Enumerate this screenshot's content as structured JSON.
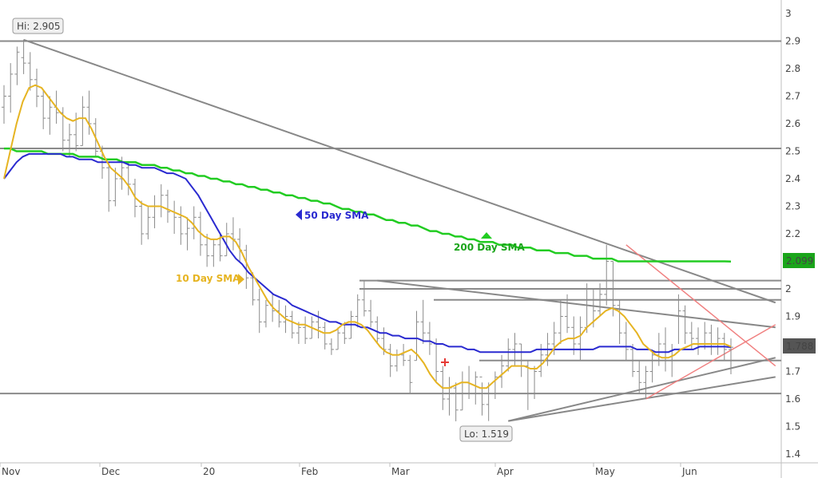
{
  "chart_data": {
    "type": "ohlc",
    "y_axis": {
      "ylim": [
        1.4,
        3.0
      ],
      "ticks": [
        "1.4",
        "1.5",
        "1.6",
        "1.7",
        "1.8",
        "1.9",
        "2",
        "2.1",
        "2.2",
        "2.3",
        "2.4",
        "2.5",
        "2.6",
        "2.7",
        "2.8",
        "2.9",
        "3"
      ]
    },
    "x_axis": {
      "ticks": [
        "Nov",
        "Dec",
        "20",
        "Feb",
        "Mar",
        "Apr",
        "May",
        "Jun"
      ]
    },
    "price_bars": [
      {
        "h": 2.74,
        "l": 2.6,
        "o": 2.66,
        "c": 2.7
      },
      {
        "h": 2.82,
        "l": 2.64,
        "o": 2.7,
        "c": 2.78
      },
      {
        "h": 2.88,
        "l": 2.74,
        "o": 2.78,
        "c": 2.86
      },
      {
        "h": 2.905,
        "l": 2.78,
        "o": 2.84,
        "c": 2.82
      },
      {
        "h": 2.86,
        "l": 2.72,
        "o": 2.82,
        "c": 2.76
      },
      {
        "h": 2.8,
        "l": 2.66,
        "o": 2.76,
        "c": 2.7
      },
      {
        "h": 2.72,
        "l": 2.58,
        "o": 2.7,
        "c": 2.62
      },
      {
        "h": 2.7,
        "l": 2.56,
        "o": 2.62,
        "c": 2.66
      },
      {
        "h": 2.72,
        "l": 2.6,
        "o": 2.66,
        "c": 2.64
      },
      {
        "h": 2.66,
        "l": 2.5,
        "o": 2.64,
        "c": 2.54
      },
      {
        "h": 2.6,
        "l": 2.48,
        "o": 2.54,
        "c": 2.56
      },
      {
        "h": 2.64,
        "l": 2.5,
        "o": 2.56,
        "c": 2.52
      },
      {
        "h": 2.7,
        "l": 2.52,
        "o": 2.52,
        "c": 2.66
      },
      {
        "h": 2.72,
        "l": 2.56,
        "o": 2.66,
        "c": 2.6
      },
      {
        "h": 2.62,
        "l": 2.48,
        "o": 2.6,
        "c": 2.5
      },
      {
        "h": 2.52,
        "l": 2.4,
        "o": 2.5,
        "c": 2.44
      },
      {
        "h": 2.46,
        "l": 2.28,
        "o": 2.44,
        "c": 2.32
      },
      {
        "h": 2.44,
        "l": 2.3,
        "o": 2.32,
        "c": 2.4
      },
      {
        "h": 2.48,
        "l": 2.36,
        "o": 2.4,
        "c": 2.44
      },
      {
        "h": 2.46,
        "l": 2.34,
        "o": 2.44,
        "c": 2.38
      },
      {
        "h": 2.4,
        "l": 2.26,
        "o": 2.38,
        "c": 2.3
      },
      {
        "h": 2.32,
        "l": 2.16,
        "o": 2.3,
        "c": 2.2
      },
      {
        "h": 2.3,
        "l": 2.18,
        "o": 2.2,
        "c": 2.26
      },
      {
        "h": 2.34,
        "l": 2.22,
        "o": 2.26,
        "c": 2.3
      },
      {
        "h": 2.38,
        "l": 2.26,
        "o": 2.3,
        "c": 2.34
      },
      {
        "h": 2.36,
        "l": 2.24,
        "o": 2.34,
        "c": 2.28
      },
      {
        "h": 2.32,
        "l": 2.2,
        "o": 2.28,
        "c": 2.26
      },
      {
        "h": 2.3,
        "l": 2.16,
        "o": 2.26,
        "c": 2.2
      },
      {
        "h": 2.26,
        "l": 2.14,
        "o": 2.2,
        "c": 2.22
      },
      {
        "h": 2.3,
        "l": 2.18,
        "o": 2.22,
        "c": 2.26
      },
      {
        "h": 2.28,
        "l": 2.12,
        "o": 2.26,
        "c": 2.16
      },
      {
        "h": 2.2,
        "l": 2.08,
        "o": 2.16,
        "c": 2.12
      },
      {
        "h": 2.18,
        "l": 2.08,
        "o": 2.12,
        "c": 2.16
      },
      {
        "h": 2.2,
        "l": 2.1,
        "o": 2.16,
        "c": 2.12
      },
      {
        "h": 2.24,
        "l": 2.12,
        "o": 2.12,
        "c": 2.2
      },
      {
        "h": 2.26,
        "l": 2.14,
        "o": 2.2,
        "c": 2.18
      },
      {
        "h": 2.22,
        "l": 2.1,
        "o": 2.18,
        "c": 2.14
      },
      {
        "h": 2.16,
        "l": 2.0,
        "o": 2.14,
        "c": 2.04
      },
      {
        "h": 2.06,
        "l": 1.94,
        "o": 2.04,
        "c": 1.96
      },
      {
        "h": 2.0,
        "l": 1.84,
        "o": 1.96,
        "c": 1.88
      },
      {
        "h": 1.96,
        "l": 1.86,
        "o": 1.88,
        "c": 1.94
      },
      {
        "h": 1.98,
        "l": 1.88,
        "o": 1.94,
        "c": 1.92
      },
      {
        "h": 1.96,
        "l": 1.86,
        "o": 1.92,
        "c": 1.88
      },
      {
        "h": 1.94,
        "l": 1.84,
        "o": 1.88,
        "c": 1.9
      },
      {
        "h": 1.92,
        "l": 1.82,
        "o": 1.9,
        "c": 1.84
      },
      {
        "h": 1.88,
        "l": 1.8,
        "o": 1.84,
        "c": 1.86
      },
      {
        "h": 1.9,
        "l": 1.8,
        "o": 1.86,
        "c": 1.82
      },
      {
        "h": 1.9,
        "l": 1.82,
        "o": 1.82,
        "c": 1.88
      },
      {
        "h": 1.92,
        "l": 1.82,
        "o": 1.88,
        "c": 1.86
      },
      {
        "h": 1.88,
        "l": 1.78,
        "o": 1.86,
        "c": 1.8
      },
      {
        "h": 1.82,
        "l": 1.76,
        "o": 1.8,
        "c": 1.78
      },
      {
        "h": 1.86,
        "l": 1.78,
        "o": 1.78,
        "c": 1.84
      },
      {
        "h": 1.88,
        "l": 1.8,
        "o": 1.84,
        "c": 1.82
      },
      {
        "h": 1.92,
        "l": 1.82,
        "o": 1.82,
        "c": 1.9
      },
      {
        "h": 1.98,
        "l": 1.86,
        "o": 1.9,
        "c": 1.96
      },
      {
        "h": 2.03,
        "l": 1.9,
        "o": 1.96,
        "c": 1.92
      },
      {
        "h": 1.96,
        "l": 1.86,
        "o": 1.92,
        "c": 1.88
      },
      {
        "h": 1.9,
        "l": 1.8,
        "o": 1.88,
        "c": 1.82
      },
      {
        "h": 1.86,
        "l": 1.76,
        "o": 1.82,
        "c": 1.78
      },
      {
        "h": 1.8,
        "l": 1.68,
        "o": 1.78,
        "c": 1.72
      },
      {
        "h": 1.78,
        "l": 1.7,
        "o": 1.72,
        "c": 1.76
      },
      {
        "h": 1.8,
        "l": 1.72,
        "o": 1.76,
        "c": 1.74
      },
      {
        "h": 1.76,
        "l": 1.62,
        "o": 1.74,
        "c": 1.66
      },
      {
        "h": 1.92,
        "l": 1.74,
        "o": 1.74,
        "c": 1.88
      },
      {
        "h": 1.96,
        "l": 1.8,
        "o": 1.88,
        "c": 1.84
      },
      {
        "h": 1.88,
        "l": 1.76,
        "o": 1.84,
        "c": 1.8
      },
      {
        "h": 1.82,
        "l": 1.66,
        "o": 1.8,
        "c": 1.7
      },
      {
        "h": 1.72,
        "l": 1.56,
        "o": 1.7,
        "c": 1.6
      },
      {
        "h": 1.68,
        "l": 1.54,
        "o": 1.6,
        "c": 1.64
      },
      {
        "h": 1.66,
        "l": 1.519,
        "o": 1.64,
        "c": 1.56
      },
      {
        "h": 1.7,
        "l": 1.56,
        "o": 1.56,
        "c": 1.66
      },
      {
        "h": 1.72,
        "l": 1.6,
        "o": 1.66,
        "c": 1.62
      },
      {
        "h": 1.7,
        "l": 1.58,
        "o": 1.62,
        "c": 1.68
      },
      {
        "h": 1.66,
        "l": 1.54,
        "o": 1.68,
        "c": 1.58
      },
      {
        "h": 1.66,
        "l": 1.52,
        "o": 1.58,
        "c": 1.62
      },
      {
        "h": 1.7,
        "l": 1.6,
        "o": 1.62,
        "c": 1.68
      },
      {
        "h": 1.76,
        "l": 1.64,
        "o": 1.68,
        "c": 1.72
      },
      {
        "h": 1.82,
        "l": 1.7,
        "o": 1.72,
        "c": 1.78
      },
      {
        "h": 1.84,
        "l": 1.72,
        "o": 1.78,
        "c": 1.8
      },
      {
        "h": 1.8,
        "l": 1.68,
        "o": 1.8,
        "c": 1.72
      },
      {
        "h": 1.74,
        "l": 1.56,
        "o": 1.72,
        "c": 1.62
      },
      {
        "h": 1.72,
        "l": 1.6,
        "o": 1.62,
        "c": 1.7
      },
      {
        "h": 1.8,
        "l": 1.68,
        "o": 1.7,
        "c": 1.76
      },
      {
        "h": 1.84,
        "l": 1.72,
        "o": 1.76,
        "c": 1.8
      },
      {
        "h": 1.88,
        "l": 1.76,
        "o": 1.8,
        "c": 1.84
      },
      {
        "h": 1.96,
        "l": 1.8,
        "o": 1.84,
        "c": 1.9
      },
      {
        "h": 1.98,
        "l": 1.84,
        "o": 1.9,
        "c": 1.86
      },
      {
        "h": 1.9,
        "l": 1.76,
        "o": 1.86,
        "c": 1.8
      },
      {
        "h": 1.9,
        "l": 1.74,
        "o": 1.8,
        "c": 1.86
      },
      {
        "h": 2.02,
        "l": 1.84,
        "o": 1.86,
        "c": 1.96
      },
      {
        "h": 2.0,
        "l": 1.86,
        "o": 1.96,
        "c": 1.92
      },
      {
        "h": 2.02,
        "l": 1.9,
        "o": 1.92,
        "c": 1.98
      },
      {
        "h": 2.16,
        "l": 1.94,
        "o": 1.98,
        "c": 2.1
      },
      {
        "h": 2.1,
        "l": 1.9,
        "o": 2.1,
        "c": 1.94
      },
      {
        "h": 1.96,
        "l": 1.8,
        "o": 1.94,
        "c": 1.84
      },
      {
        "h": 1.88,
        "l": 1.74,
        "o": 1.84,
        "c": 1.78
      },
      {
        "h": 1.8,
        "l": 1.68,
        "o": 1.78,
        "c": 1.7
      },
      {
        "h": 1.74,
        "l": 1.62,
        "o": 1.7,
        "c": 1.66
      },
      {
        "h": 1.72,
        "l": 1.6,
        "o": 1.66,
        "c": 1.7
      },
      {
        "h": 1.78,
        "l": 1.66,
        "o": 1.7,
        "c": 1.76
      },
      {
        "h": 1.84,
        "l": 1.72,
        "o": 1.76,
        "c": 1.8
      },
      {
        "h": 1.86,
        "l": 1.7,
        "o": 1.8,
        "c": 1.74
      },
      {
        "h": 1.8,
        "l": 1.68,
        "o": 1.74,
        "c": 1.78
      },
      {
        "h": 1.98,
        "l": 1.8,
        "o": 1.78,
        "c": 1.92
      },
      {
        "h": 1.94,
        "l": 1.8,
        "o": 1.92,
        "c": 1.84
      },
      {
        "h": 1.88,
        "l": 1.78,
        "o": 1.84,
        "c": 1.82
      },
      {
        "h": 1.86,
        "l": 1.76,
        "o": 1.82,
        "c": 1.8
      },
      {
        "h": 1.88,
        "l": 1.78,
        "o": 1.8,
        "c": 1.84
      },
      {
        "h": 1.87,
        "l": 1.76,
        "o": 1.84,
        "c": 1.8
      },
      {
        "h": 1.86,
        "l": 1.76,
        "o": 1.8,
        "c": 1.82
      },
      {
        "h": 1.84,
        "l": 1.74,
        "o": 1.82,
        "c": 1.78
      },
      {
        "h": 1.82,
        "l": 1.69,
        "o": 1.78,
        "c": 1.788
      }
    ],
    "sma10": [
      2.4,
      2.5,
      2.6,
      2.68,
      2.73,
      2.74,
      2.73,
      2.7,
      2.67,
      2.64,
      2.62,
      2.61,
      2.62,
      2.62,
      2.58,
      2.53,
      2.48,
      2.44,
      2.42,
      2.4,
      2.37,
      2.33,
      2.31,
      2.3,
      2.3,
      2.3,
      2.29,
      2.28,
      2.27,
      2.26,
      2.24,
      2.21,
      2.19,
      2.18,
      2.18,
      2.19,
      2.19,
      2.17,
      2.13,
      2.08,
      2.04,
      2.0,
      1.96,
      1.93,
      1.91,
      1.89,
      1.88,
      1.87,
      1.87,
      1.86,
      1.85,
      1.84,
      1.84,
      1.85,
      1.87,
      1.88,
      1.88,
      1.87,
      1.85,
      1.82,
      1.79,
      1.77,
      1.76,
      1.76,
      1.77,
      1.78,
      1.76,
      1.73,
      1.69,
      1.66,
      1.64,
      1.64,
      1.65,
      1.66,
      1.66,
      1.65,
      1.64,
      1.64,
      1.66,
      1.68,
      1.7,
      1.72,
      1.72,
      1.72,
      1.71,
      1.71,
      1.73,
      1.76,
      1.79,
      1.81,
      1.82,
      1.82,
      1.83,
      1.86,
      1.88,
      1.9,
      1.92,
      1.93,
      1.92,
      1.9,
      1.87,
      1.84,
      1.8,
      1.78,
      1.76,
      1.75,
      1.75,
      1.76,
      1.78,
      1.79,
      1.8,
      1.8,
      1.8,
      1.8,
      1.8,
      1.8,
      1.79
    ],
    "sma50": [
      2.4,
      2.43,
      2.46,
      2.48,
      2.49,
      2.49,
      2.49,
      2.49,
      2.49,
      2.49,
      2.48,
      2.48,
      2.47,
      2.47,
      2.47,
      2.46,
      2.46,
      2.46,
      2.46,
      2.46,
      2.45,
      2.45,
      2.44,
      2.44,
      2.44,
      2.43,
      2.42,
      2.42,
      2.41,
      2.4,
      2.37,
      2.34,
      2.3,
      2.26,
      2.22,
      2.18,
      2.14,
      2.11,
      2.09,
      2.06,
      2.04,
      2.02,
      2.0,
      1.98,
      1.97,
      1.96,
      1.94,
      1.93,
      1.92,
      1.91,
      1.9,
      1.89,
      1.88,
      1.88,
      1.87,
      1.87,
      1.87,
      1.86,
      1.86,
      1.85,
      1.84,
      1.84,
      1.83,
      1.83,
      1.82,
      1.82,
      1.82,
      1.81,
      1.81,
      1.8,
      1.8,
      1.79,
      1.79,
      1.79,
      1.78,
      1.78,
      1.77,
      1.77,
      1.77,
      1.77,
      1.77,
      1.77,
      1.77,
      1.77,
      1.77,
      1.78,
      1.78,
      1.78,
      1.78,
      1.78,
      1.78,
      1.78,
      1.78,
      1.78,
      1.78,
      1.79,
      1.79,
      1.79,
      1.79,
      1.79,
      1.79,
      1.78,
      1.78,
      1.78,
      1.77,
      1.77,
      1.77,
      1.78,
      1.78,
      1.78,
      1.78,
      1.79,
      1.79,
      1.79,
      1.79,
      1.79,
      1.788
    ],
    "sma200": [
      2.51,
      2.51,
      2.5,
      2.5,
      2.5,
      2.5,
      2.5,
      2.49,
      2.49,
      2.49,
      2.49,
      2.49,
      2.48,
      2.48,
      2.48,
      2.48,
      2.47,
      2.47,
      2.47,
      2.46,
      2.46,
      2.46,
      2.45,
      2.45,
      2.45,
      2.44,
      2.44,
      2.43,
      2.43,
      2.42,
      2.42,
      2.41,
      2.41,
      2.4,
      2.4,
      2.39,
      2.39,
      2.38,
      2.38,
      2.37,
      2.37,
      2.36,
      2.36,
      2.35,
      2.35,
      2.34,
      2.34,
      2.33,
      2.33,
      2.32,
      2.32,
      2.31,
      2.31,
      2.3,
      2.29,
      2.29,
      2.28,
      2.28,
      2.27,
      2.27,
      2.26,
      2.25,
      2.25,
      2.24,
      2.24,
      2.23,
      2.23,
      2.22,
      2.21,
      2.21,
      2.2,
      2.2,
      2.19,
      2.19,
      2.18,
      2.18,
      2.17,
      2.17,
      2.17,
      2.16,
      2.16,
      2.16,
      2.15,
      2.15,
      2.15,
      2.14,
      2.14,
      2.14,
      2.13,
      2.13,
      2.13,
      2.12,
      2.12,
      2.12,
      2.11,
      2.11,
      2.11,
      2.11,
      2.1,
      2.1,
      2.1,
      2.1,
      2.1,
      2.1,
      2.1,
      2.1,
      2.1,
      2.1,
      2.1,
      2.1,
      2.1,
      2.1,
      2.1,
      2.1,
      2.1,
      2.1,
      2.099
    ],
    "horizontal_levels": [
      2.9,
      2.51,
      1.62
    ],
    "short_levels": [
      2.03,
      2.0,
      1.96,
      1.74
    ],
    "annotations": {
      "high_label": "Hi: 2.905",
      "low_label": "Lo: 1.519",
      "sma10_label": "10 Day SMA",
      "sma50_label": "50 Day SMA",
      "sma200_label": "200 Day SMA",
      "price_tag": "1.788",
      "sma200_tag": "2.099"
    },
    "colors": {
      "price": "#8a8a8a",
      "sma10": "#e6b422",
      "sma50": "#2a2ad0",
      "sma200": "#22cc22",
      "trend": "#888888",
      "red_lines": "#f08080",
      "tag_gray": "#555555",
      "tag_green": "#1aa51a"
    },
    "grid": false
  }
}
